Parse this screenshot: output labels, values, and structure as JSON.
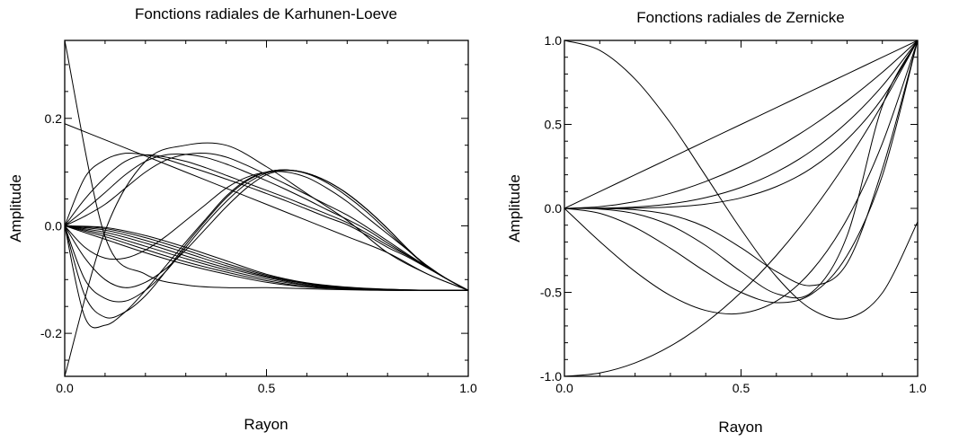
{
  "chart_data": [
    {
      "type": "line",
      "title": "Fonctions radiales de Karhunen-Loeve",
      "xlabel": "Rayon",
      "ylabel": "Amplitude",
      "xlim": [
        0,
        1
      ],
      "ylim": [
        -0.28,
        0.345
      ],
      "xticks": [
        {
          "value": 0,
          "label": "0.0"
        },
        {
          "value": 0.5,
          "label": "0.5"
        },
        {
          "value": 1,
          "label": "1.0"
        }
      ],
      "yticks": [
        {
          "value": -0.2,
          "label": "-0.2"
        },
        {
          "value": 0,
          "label": "0.0"
        },
        {
          "value": 0.2,
          "label": "0.2"
        }
      ],
      "xminor_step": 0.1,
      "yminor_step": 0.05,
      "grid": false,
      "series": [
        {
          "x": [
            0,
            0.1,
            0.2,
            0.3,
            0.4,
            0.5,
            0.6,
            0.7,
            0.8,
            0.9,
            1.0
          ],
          "y": [
            0.345,
            -0.02,
            -0.09,
            -0.11,
            -0.115,
            -0.115,
            -0.117,
            -0.119,
            -0.12,
            -0.12,
            -0.12
          ]
        },
        {
          "x": [
            0,
            0.1,
            0.2,
            0.3,
            0.4,
            0.5,
            0.6,
            0.7,
            0.8,
            0.9,
            1.0
          ],
          "y": [
            -0.28,
            -0.01,
            0.12,
            0.15,
            0.15,
            0.11,
            0.06,
            0.01,
            -0.05,
            -0.09,
            -0.12
          ]
        },
        {
          "x": [
            0,
            0.1,
            0.2,
            0.3,
            0.4,
            0.5,
            0.6,
            0.7,
            0.8,
            0.9,
            1.0
          ],
          "y": [
            0.19,
            0.16,
            0.13,
            0.1,
            0.07,
            0.04,
            0.01,
            -0.02,
            -0.05,
            -0.09,
            -0.12
          ]
        },
        {
          "x": [
            0,
            0.05,
            0.1,
            0.15,
            0.2,
            0.25,
            0.3,
            0.35,
            0.4,
            0.45,
            0.5,
            0.55,
            0.6,
            0.65,
            0.7,
            0.75,
            0.8,
            0.85,
            0.9,
            0.95,
            1.0
          ],
          "y": [
            0,
            0.09,
            0.123,
            0.135,
            0.132,
            0.124,
            0.112,
            0.1,
            0.087,
            0.074,
            0.06,
            0.046,
            0.031,
            0.016,
            0.002,
            -0.018,
            -0.04,
            -0.058,
            -0.079,
            -0.1,
            -0.12
          ]
        },
        {
          "x": [
            0,
            0.05,
            0.1,
            0.15,
            0.2,
            0.25,
            0.3,
            0.35,
            0.4,
            0.45,
            0.5,
            0.55,
            0.6,
            0.65,
            0.7,
            0.75,
            0.8,
            0.85,
            0.9,
            0.95,
            1.0
          ],
          "y": [
            0,
            0.05,
            0.09,
            0.12,
            0.132,
            0.128,
            0.12,
            0.108,
            0.094,
            0.08,
            0.066,
            0.052,
            0.037,
            0.022,
            0.006,
            -0.014,
            -0.036,
            -0.056,
            -0.078,
            -0.1,
            -0.12
          ]
        },
        {
          "x": [
            0,
            0.05,
            0.1,
            0.15,
            0.2,
            0.25,
            0.3,
            0.35,
            0.4,
            0.45,
            0.5,
            0.55,
            0.6,
            0.65,
            0.7,
            0.75,
            0.8,
            0.85,
            0.9,
            0.95,
            1.0
          ],
          "y": [
            0,
            0.03,
            0.062,
            0.095,
            0.12,
            0.132,
            0.133,
            0.127,
            0.115,
            0.1,
            0.084,
            0.067,
            0.049,
            0.03,
            0.012,
            -0.008,
            -0.032,
            -0.055,
            -0.078,
            -0.1,
            -0.12
          ]
        },
        {
          "x": [
            0,
            0.05,
            0.1,
            0.15,
            0.2,
            0.25,
            0.3,
            0.35,
            0.4,
            0.45,
            0.5,
            0.55,
            0.6,
            0.65,
            0.7,
            0.75,
            0.8,
            0.85,
            0.9,
            0.95,
            1.0
          ],
          "y": [
            0,
            0.018,
            0.04,
            0.07,
            0.1,
            0.122,
            0.133,
            0.135,
            0.128,
            0.113,
            0.095,
            0.077,
            0.058,
            0.039,
            0.02,
            -0.003,
            -0.028,
            -0.053,
            -0.077,
            -0.1,
            -0.12
          ]
        },
        {
          "x": [
            0,
            0.05,
            0.1,
            0.15,
            0.2,
            0.25,
            0.3,
            0.35,
            0.4,
            0.45,
            0.5,
            0.55,
            0.6,
            0.65,
            0.7,
            0.75,
            0.8,
            0.85,
            0.9,
            0.95,
            1.0
          ],
          "y": [
            0,
            -0.04,
            -0.06,
            -0.06,
            -0.045,
            -0.02,
            0.01,
            0.04,
            0.07,
            0.09,
            0.1,
            0.1,
            0.09,
            0.07,
            0.045,
            0.015,
            -0.015,
            -0.045,
            -0.075,
            -0.1,
            -0.12
          ]
        },
        {
          "x": [
            0,
            0.05,
            0.1,
            0.15,
            0.2,
            0.25,
            0.3,
            0.35,
            0.4,
            0.45,
            0.5,
            0.55,
            0.6,
            0.65,
            0.7,
            0.75,
            0.8,
            0.85,
            0.9,
            0.95,
            1.0
          ],
          "y": [
            0,
            -0.06,
            -0.1,
            -0.115,
            -0.105,
            -0.08,
            -0.045,
            -0.005,
            0.035,
            0.07,
            0.095,
            0.103,
            0.097,
            0.08,
            0.055,
            0.025,
            -0.01,
            -0.045,
            -0.077,
            -0.1,
            -0.12
          ]
        },
        {
          "x": [
            0,
            0.05,
            0.1,
            0.15,
            0.2,
            0.25,
            0.3,
            0.35,
            0.4,
            0.45,
            0.5,
            0.55,
            0.6,
            0.65,
            0.7,
            0.75,
            0.8,
            0.85,
            0.9,
            0.95,
            1.0
          ],
          "y": [
            0,
            -0.1,
            -0.135,
            -0.14,
            -0.12,
            -0.085,
            -0.04,
            0.005,
            0.045,
            0.078,
            0.098,
            0.104,
            0.098,
            0.083,
            0.06,
            0.03,
            -0.005,
            -0.043,
            -0.077,
            -0.1,
            -0.12
          ]
        },
        {
          "x": [
            0,
            0.05,
            0.1,
            0.15,
            0.2,
            0.25,
            0.3,
            0.35,
            0.4,
            0.45,
            0.5,
            0.55,
            0.6,
            0.65,
            0.7,
            0.75,
            0.8,
            0.85,
            0.9,
            0.95,
            1.0
          ],
          "y": [
            0,
            -0.13,
            -0.17,
            -0.16,
            -0.13,
            -0.085,
            -0.035,
            0.01,
            0.052,
            0.083,
            0.1,
            0.104,
            0.098,
            0.083,
            0.06,
            0.03,
            -0.005,
            -0.043,
            -0.077,
            -0.1,
            -0.12
          ]
        },
        {
          "x": [
            0,
            0.05,
            0.1,
            0.15,
            0.2,
            0.25,
            0.3,
            0.35,
            0.4,
            0.45,
            0.5,
            0.55,
            0.6,
            0.65,
            0.7,
            0.75,
            0.8,
            0.85,
            0.9,
            0.95,
            1.0
          ],
          "y": [
            0,
            -0.17,
            -0.185,
            -0.16,
            -0.12,
            -0.075,
            -0.03,
            0.013,
            0.055,
            0.085,
            0.1,
            0.104,
            0.098,
            0.083,
            0.06,
            0.03,
            -0.005,
            -0.043,
            -0.077,
            -0.1,
            -0.12
          ]
        },
        {
          "x": [
            0,
            0.1,
            0.2,
            0.3,
            0.4,
            0.5,
            0.6,
            0.7,
            0.8,
            0.9,
            1.0
          ],
          "y": [
            0,
            -0.003,
            -0.018,
            -0.04,
            -0.065,
            -0.09,
            -0.106,
            -0.114,
            -0.118,
            -0.12,
            -0.12
          ]
        },
        {
          "x": [
            0,
            0.1,
            0.2,
            0.3,
            0.4,
            0.5,
            0.6,
            0.7,
            0.8,
            0.9,
            1.0
          ],
          "y": [
            0,
            -0.005,
            -0.022,
            -0.045,
            -0.07,
            -0.092,
            -0.107,
            -0.115,
            -0.118,
            -0.12,
            -0.12
          ]
        },
        {
          "x": [
            0,
            0.1,
            0.2,
            0.3,
            0.4,
            0.5,
            0.6,
            0.7,
            0.8,
            0.9,
            1.0
          ],
          "y": [
            0,
            -0.008,
            -0.027,
            -0.05,
            -0.074,
            -0.094,
            -0.108,
            -0.116,
            -0.119,
            -0.12,
            -0.12
          ]
        },
        {
          "x": [
            0,
            0.1,
            0.2,
            0.3,
            0.4,
            0.5,
            0.6,
            0.7,
            0.8,
            0.9,
            1.0
          ],
          "y": [
            0,
            -0.012,
            -0.032,
            -0.056,
            -0.078,
            -0.096,
            -0.11,
            -0.116,
            -0.119,
            -0.12,
            -0.12
          ]
        },
        {
          "x": [
            0,
            0.1,
            0.2,
            0.3,
            0.4,
            0.5,
            0.6,
            0.7,
            0.8,
            0.9,
            1.0
          ],
          "y": [
            0,
            -0.016,
            -0.038,
            -0.061,
            -0.082,
            -0.099,
            -0.111,
            -0.117,
            -0.119,
            -0.12,
            -0.12
          ]
        },
        {
          "x": [
            0,
            0.1,
            0.2,
            0.3,
            0.4,
            0.5,
            0.6,
            0.7,
            0.8,
            0.9,
            1.0
          ],
          "y": [
            0,
            -0.02,
            -0.044,
            -0.067,
            -0.086,
            -0.102,
            -0.113,
            -0.117,
            -0.119,
            -0.12,
            -0.12
          ]
        },
        {
          "x": [
            0,
            0.1,
            0.2,
            0.3,
            0.4,
            0.5,
            0.6,
            0.7,
            0.8,
            0.9,
            1.0
          ],
          "y": [
            0,
            -0.025,
            -0.05,
            -0.072,
            -0.09,
            -0.105,
            -0.114,
            -0.118,
            -0.12,
            -0.12,
            -0.12
          ]
        }
      ]
    },
    {
      "type": "line",
      "title": "Fonctions radiales de Zernicke",
      "xlabel": "Rayon",
      "ylabel": "Amplitude",
      "xlim": [
        0,
        1
      ],
      "ylim": [
        -1,
        1
      ],
      "xticks": [
        {
          "value": 0,
          "label": "0.0"
        },
        {
          "value": 0.5,
          "label": "0.5"
        },
        {
          "value": 1,
          "label": "1.0"
        }
      ],
      "yticks": [
        {
          "value": -1,
          "label": "-1.0"
        },
        {
          "value": -0.5,
          "label": "-0.5"
        },
        {
          "value": 0,
          "label": "0.0"
        },
        {
          "value": 0.5,
          "label": "0.5"
        },
        {
          "value": 1,
          "label": "1.0"
        }
      ],
      "xminor_step": 0.1,
      "yminor_step": 0.1,
      "grid": false,
      "series": [
        {
          "x": [
            0,
            0.1,
            0.2,
            0.3,
            0.4,
            0.5,
            0.6,
            0.7,
            0.8,
            0.9,
            1.0
          ],
          "y": [
            1,
            0.9406,
            0.7696,
            0.5086,
            0.1936,
            -0.125,
            -0.4064,
            -0.6014,
            -0.6544,
            -0.5034,
            -0.08
          ]
        },
        {
          "x": [
            0,
            0.1,
            0.2,
            0.3,
            0.4,
            0.5,
            0.6,
            0.7,
            0.8,
            0.9,
            1.0
          ],
          "y": [
            -1,
            -0.98,
            -0.92,
            -0.82,
            -0.68,
            -0.5,
            -0.28,
            -0.02,
            0.28,
            0.62,
            1.0
          ]
        },
        {
          "x": [
            0,
            0.1,
            0.2,
            0.3,
            0.4,
            0.5,
            0.6,
            0.7,
            0.8,
            0.9,
            1.0
          ],
          "y": [
            0,
            0.1,
            0.2,
            0.3,
            0.4,
            0.5,
            0.6,
            0.7,
            0.8,
            0.9,
            1.0
          ]
        },
        {
          "x": [
            0,
            0.1,
            0.2,
            0.3,
            0.4,
            0.5,
            0.6,
            0.7,
            0.8,
            0.9,
            1.0
          ],
          "y": [
            0,
            0.01,
            0.04,
            0.09,
            0.16,
            0.25,
            0.36,
            0.49,
            0.64,
            0.81,
            1.0
          ]
        },
        {
          "x": [
            0,
            0.1,
            0.2,
            0.3,
            0.4,
            0.5,
            0.6,
            0.7,
            0.8,
            0.9,
            1.0
          ],
          "y": [
            0,
            0.001,
            0.008,
            0.027,
            0.064,
            0.125,
            0.216,
            0.343,
            0.512,
            0.729,
            1.0
          ]
        },
        {
          "x": [
            0,
            0.1,
            0.2,
            0.3,
            0.4,
            0.5,
            0.6,
            0.7,
            0.8,
            0.9,
            1.0
          ],
          "y": [
            0,
            0.0001,
            0.0016,
            0.0081,
            0.0256,
            0.0625,
            0.1296,
            0.2401,
            0.4096,
            0.6561,
            1.0
          ]
        },
        {
          "x": [
            0,
            0.1,
            0.2,
            0.3,
            0.4,
            0.5,
            0.6,
            0.7,
            0.8,
            0.9,
            1.0
          ],
          "y": [
            0,
            -0.197,
            -0.376,
            -0.519,
            -0.608,
            -0.625,
            -0.552,
            -0.371,
            -0.064,
            0.387,
            1.0
          ]
        },
        {
          "x": [
            0,
            0.1,
            0.2,
            0.3,
            0.4,
            0.5,
            0.6,
            0.7,
            0.8,
            0.9,
            1.0
          ],
          "y": [
            0,
            -0.0296,
            -0.1136,
            -0.2376,
            -0.3776,
            -0.5,
            -0.5616,
            -0.5096,
            -0.2816,
            0.1944,
            1.0
          ]
        },
        {
          "x": [
            0,
            0.1,
            0.2,
            0.3,
            0.4,
            0.5,
            0.6,
            0.7,
            0.8,
            0.9,
            1.0
          ],
          "y": [
            0,
            -0.004,
            -0.0313,
            -0.101,
            -0.2212,
            -0.3764,
            -0.5076,
            -0.5003,
            -0.1644,
            0.6097,
            1.0
          ]
        },
        {
          "x": [
            0,
            0.1,
            0.2,
            0.3,
            0.4,
            0.5,
            0.6,
            0.7,
            0.8,
            0.9,
            1.0
          ],
          "y": [
            0,
            -0.0005,
            -0.008,
            -0.0388,
            -0.1117,
            -0.2344,
            -0.3763,
            -0.4595,
            -0.3273,
            0.2339,
            1.0
          ]
        }
      ]
    }
  ]
}
